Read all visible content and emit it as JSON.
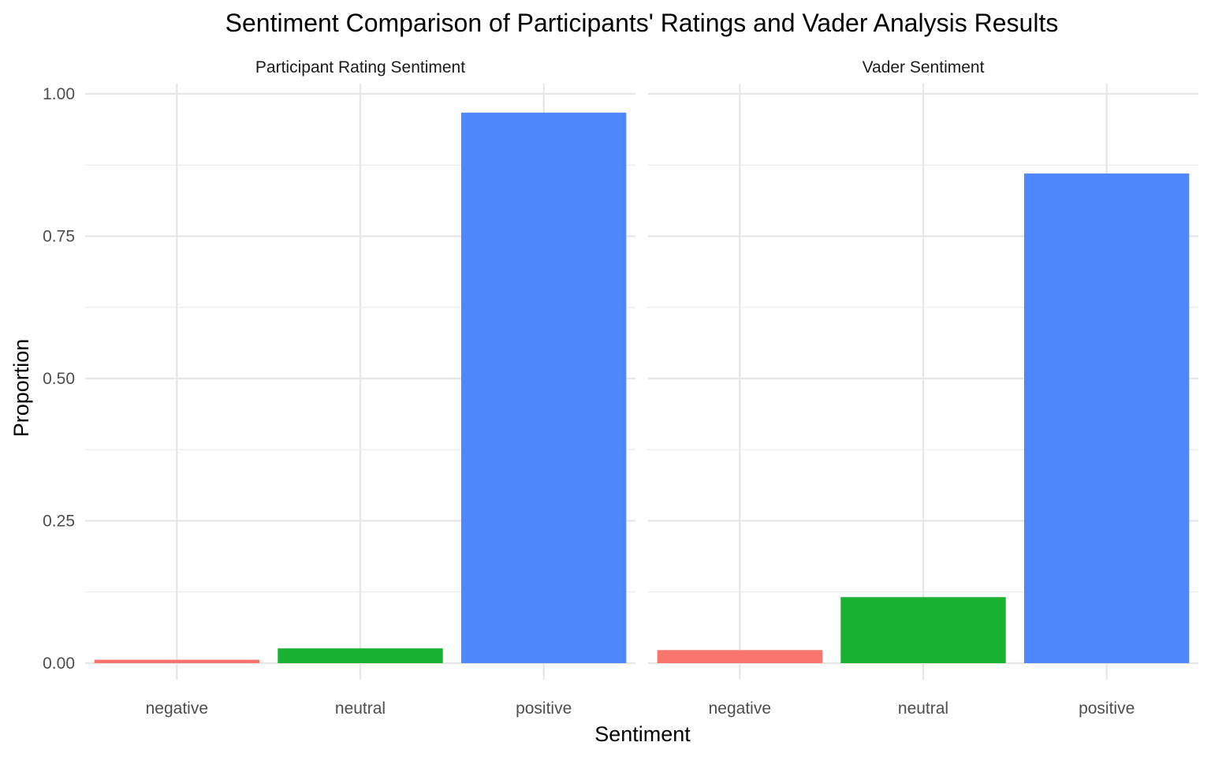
{
  "chart_data": {
    "type": "bar",
    "title": "Sentiment Comparison of Participants' Ratings and Vader Analysis Results",
    "xlabel": "Sentiment",
    "ylabel": "Proportion",
    "categories": [
      "negative",
      "neutral",
      "positive"
    ],
    "category_colors": [
      "#F8766D",
      "#19B230",
      "#4F87FF"
    ],
    "ylim": [
      0,
      1.0
    ],
    "yticks": [
      0.0,
      0.25,
      0.5,
      0.75,
      1.0
    ],
    "ytick_labels": [
      "0.00",
      "0.25",
      "0.50",
      "0.75",
      "1.00"
    ],
    "grid": true,
    "legend": "none",
    "facets": [
      {
        "name": "Participant Rating Sentiment",
        "values": [
          0.006,
          0.026,
          0.967
        ]
      },
      {
        "name": "Vader Sentiment",
        "values": [
          0.023,
          0.116,
          0.86
        ]
      }
    ]
  }
}
